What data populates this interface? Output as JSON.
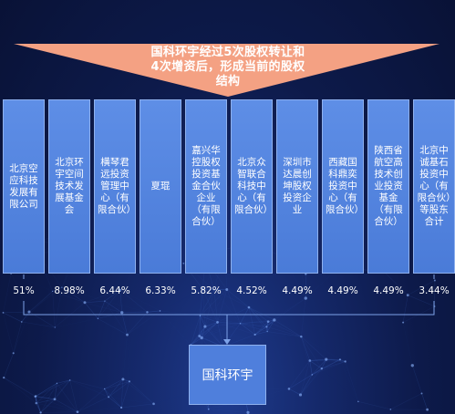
{
  "title": "国科环宇经过5次股权转让和4次增资后，形成当前的股权结构",
  "title_lines": [
    "国科环宇经过5次股权转让和",
    "4次增资后，形成当前的股权",
    "结构"
  ],
  "shareholders": [
    {
      "name": "北京空应科技发展有限公司",
      "percent": "51%"
    },
    {
      "name": "北京环宇空间技术发展基金会",
      "percent": "8.98%"
    },
    {
      "name": "横琴君远投资管理中心（有限合伙）",
      "percent": "6.44%"
    },
    {
      "name": "夏琨",
      "percent": "6.33%"
    },
    {
      "name": "嘉兴华控股权投资基金合伙企业（有限合伙）",
      "percent": "5.82%"
    },
    {
      "name": "北京众智联合科技中心（有限合伙）",
      "percent": "4.52%"
    },
    {
      "name": "深圳市达晨创坤股权投资企业",
      "percent": "4.49%"
    },
    {
      "name": "西藏国科鼎奕投资中心（有限合伙）",
      "percent": "4.49%"
    },
    {
      "name": "陕西省航空高技术创业投资基金（有限合伙）",
      "percent": "4.49%"
    },
    {
      "name": "北京中诚基石投资中心（有限合伙）等股东合计",
      "percent": "3.44%"
    }
  ],
  "target": "国科环宇",
  "colors": {
    "box": "#4f7fdc",
    "banner": "#f4a183",
    "background": "#0d1a4a",
    "line": "#7da2e8"
  }
}
